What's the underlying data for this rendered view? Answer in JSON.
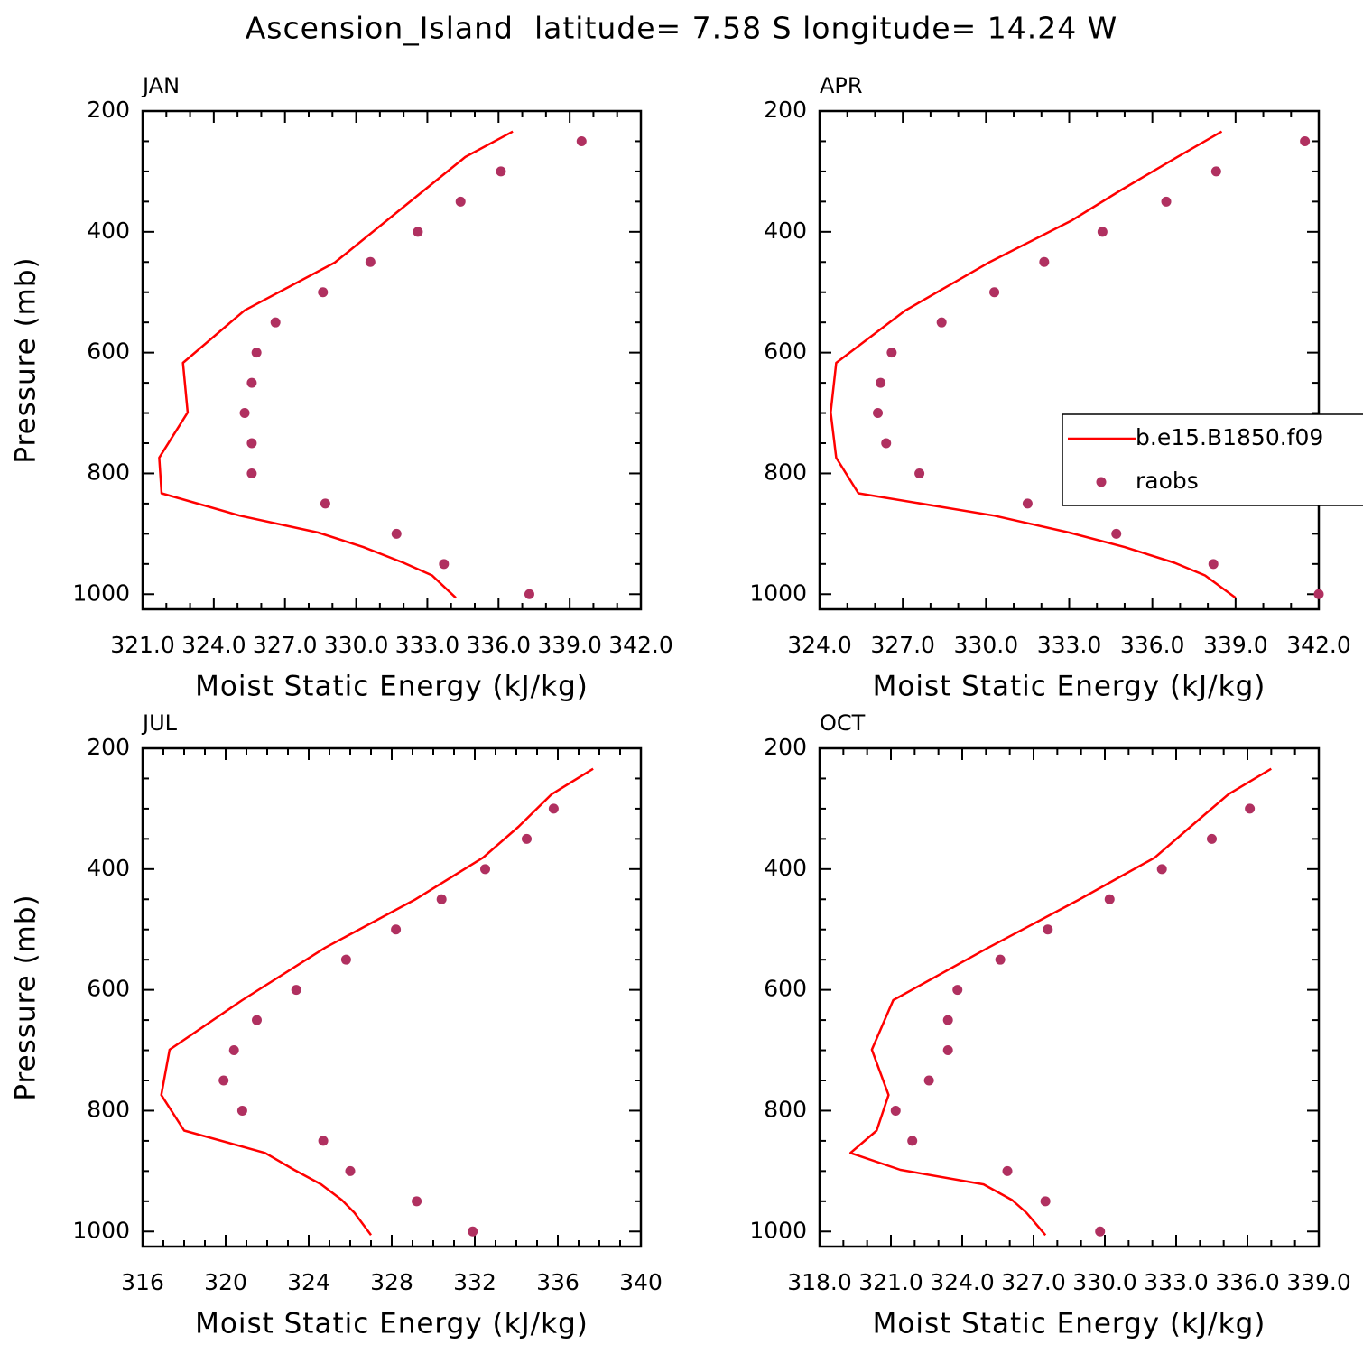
{
  "title": "Ascension_Island  latitude= 7.58 S longitude= 14.24 W",
  "chart_data": [
    {
      "type": "line",
      "title": "JAN",
      "xlabel": "Moist Static Energy (kJ/kg)",
      "ylabel": "Pressure (mb)",
      "xlim": [
        321,
        342
      ],
      "xticks": [
        {
          "value": 321,
          "label": "321.0"
        },
        {
          "value": 324,
          "label": "324.0"
        },
        {
          "value": 327,
          "label": "327.0"
        },
        {
          "value": 330,
          "label": "330.0"
        },
        {
          "value": 333,
          "label": "333.0"
        },
        {
          "value": 336,
          "label": "336.0"
        },
        {
          "value": 339,
          "label": "339.0"
        },
        {
          "value": 342,
          "label": "342.0"
        }
      ],
      "ylim": [
        200,
        1025
      ],
      "y_inverted": true,
      "yticks": [
        200,
        400,
        600,
        800,
        1000
      ],
      "series": [
        {
          "name": "b.e15.B1850.f09",
          "color": "#ff0000",
          "style": "line",
          "x": [
            336.6,
            334.6,
            332.9,
            331.3,
            329.1,
            325.3,
            322.7,
            322.9,
            321.7,
            321.8,
            325.1,
            328.4,
            330.3,
            332.0,
            333.2,
            334.2
          ],
          "y": [
            234,
            276,
            330,
            381,
            451,
            530,
            617,
            699,
            774,
            833,
            870,
            898,
            922,
            948,
            969,
            1006
          ]
        },
        {
          "name": "raobs",
          "color": "#b03060",
          "style": "markers",
          "x": [
            339.5,
            336.1,
            334.4,
            332.6,
            330.6,
            328.6,
            326.6,
            325.8,
            325.6,
            325.3,
            325.6,
            325.6,
            328.7,
            331.7,
            333.7,
            337.3
          ],
          "y": [
            250,
            300,
            350,
            400,
            450,
            500,
            550,
            600,
            650,
            700,
            750,
            800,
            850,
            900,
            950,
            1000
          ]
        }
      ]
    },
    {
      "type": "line",
      "title": "APR",
      "xlabel": "Moist Static Energy (kJ/kg)",
      "legend": "center-right",
      "xlim": [
        324,
        342
      ],
      "xticks": [
        {
          "value": 324,
          "label": "324.0"
        },
        {
          "value": 327,
          "label": "327.0"
        },
        {
          "value": 330,
          "label": "330.0"
        },
        {
          "value": 333,
          "label": "333.0"
        },
        {
          "value": 336,
          "label": "336.0"
        },
        {
          "value": 339,
          "label": "339.0"
        },
        {
          "value": 342,
          "label": "342.0"
        }
      ],
      "ylim": [
        200,
        1025
      ],
      "y_inverted": true,
      "yticks": [
        200,
        400,
        600,
        800,
        1000
      ],
      "series": [
        {
          "name": "b.e15.B1850.f09",
          "color": "#ff0000",
          "style": "line",
          "x": [
            338.5,
            336.9,
            334.9,
            333.1,
            330.1,
            327.1,
            324.6,
            324.4,
            324.6,
            325.4,
            330.3,
            333.0,
            335.0,
            336.8,
            337.9,
            339.0
          ],
          "y": [
            234,
            276,
            330,
            381,
            451,
            530,
            617,
            699,
            774,
            833,
            870,
            898,
            922,
            948,
            969,
            1006
          ]
        },
        {
          "name": "raobs",
          "color": "#b03060",
          "style": "markers",
          "x": [
            341.5,
            338.3,
            336.5,
            334.2,
            332.1,
            330.3,
            328.4,
            326.6,
            326.2,
            326.1,
            326.4,
            327.6,
            331.5,
            334.7,
            338.2,
            342.0
          ],
          "y": [
            250,
            300,
            350,
            400,
            450,
            500,
            550,
            600,
            650,
            700,
            750,
            800,
            850,
            900,
            950,
            1000
          ]
        }
      ]
    },
    {
      "type": "line",
      "title": "JUL",
      "xlabel": "Moist Static Energy (kJ/kg)",
      "ylabel": "Pressure (mb)",
      "xlim": [
        316,
        340
      ],
      "xticks": [
        316,
        320,
        324,
        328,
        332,
        336,
        340
      ],
      "ylim": [
        200,
        1025
      ],
      "y_inverted": true,
      "yticks": [
        200,
        400,
        600,
        800,
        1000
      ],
      "series": [
        {
          "name": "b.e15.B1850.f09",
          "color": "#ff0000",
          "style": "line",
          "x": [
            337.7,
            335.7,
            334.1,
            332.4,
            329.1,
            324.8,
            320.8,
            317.3,
            316.9,
            318.0,
            321.9,
            323.3,
            324.6,
            325.6,
            326.2,
            327.0
          ],
          "y": [
            234,
            276,
            330,
            381,
            451,
            530,
            617,
            699,
            774,
            833,
            870,
            898,
            922,
            948,
            969,
            1006
          ]
        },
        {
          "name": "raobs",
          "color": "#b03060",
          "style": "markers",
          "x": [
            335.8,
            334.5,
            332.5,
            330.4,
            328.2,
            325.8,
            323.4,
            321.5,
            320.4,
            319.9,
            320.8,
            324.7,
            326.0,
            329.2,
            331.9
          ],
          "y": [
            300,
            350,
            400,
            450,
            500,
            550,
            600,
            650,
            700,
            750,
            800,
            850,
            900,
            950,
            1000
          ]
        }
      ]
    },
    {
      "type": "line",
      "title": "OCT",
      "xlabel": "Moist Static Energy (kJ/kg)",
      "xlim": [
        318,
        339
      ],
      "xticks": [
        {
          "value": 318,
          "label": "318.0"
        },
        {
          "value": 321,
          "label": "321.0"
        },
        {
          "value": 324,
          "label": "324.0"
        },
        {
          "value": 327,
          "label": "327.0"
        },
        {
          "value": 330,
          "label": "330.0"
        },
        {
          "value": 333,
          "label": "333.0"
        },
        {
          "value": 336,
          "label": "336.0"
        },
        {
          "value": 339,
          "label": "339.0"
        }
      ],
      "ylim": [
        200,
        1025
      ],
      "y_inverted": true,
      "yticks": [
        200,
        400,
        600,
        800,
        1000
      ],
      "series": [
        {
          "name": "b.e15.B1850.f09",
          "color": "#ff0000",
          "style": "line",
          "x": [
            337.0,
            335.2,
            333.6,
            332.1,
            328.9,
            325.1,
            321.1,
            320.2,
            320.9,
            320.4,
            319.3,
            321.4,
            324.9,
            326.1,
            326.7,
            327.5
          ],
          "y": [
            234,
            276,
            330,
            381,
            451,
            530,
            617,
            699,
            774,
            833,
            870,
            898,
            922,
            948,
            969,
            1006
          ]
        },
        {
          "name": "raobs",
          "color": "#b03060",
          "style": "markers",
          "x": [
            336.1,
            334.5,
            332.4,
            330.2,
            327.6,
            325.6,
            323.8,
            323.4,
            323.4,
            322.6,
            321.2,
            321.9,
            325.9,
            327.5,
            329.8
          ],
          "y": [
            300,
            350,
            400,
            450,
            500,
            550,
            600,
            650,
            700,
            750,
            800,
            850,
            900,
            950,
            1000
          ]
        }
      ]
    }
  ]
}
